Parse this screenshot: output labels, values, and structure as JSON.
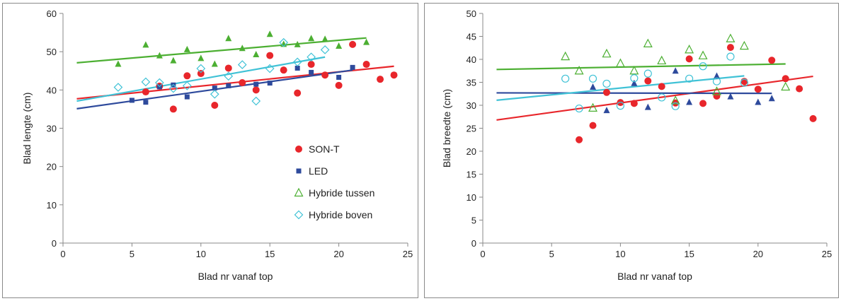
{
  "chart_data": [
    {
      "type": "scatter",
      "xlabel": "Blad nr vanaf top",
      "ylabel": "Blad lengte (cm)",
      "xlim": [
        0,
        25
      ],
      "ylim": [
        0,
        60
      ],
      "xticks": [
        0,
        5,
        10,
        15,
        20,
        25
      ],
      "yticks": [
        0,
        10,
        20,
        30,
        40,
        50,
        60
      ],
      "grid": false,
      "legend": "inside lower-right",
      "series": [
        {
          "name": "SON-T",
          "color": "#e8262b",
          "marker": "circle",
          "points": [
            [
              6,
              39.5
            ],
            [
              7,
              41
            ],
            [
              8,
              35
            ],
            [
              9,
              43.7
            ],
            [
              10,
              44.3
            ],
            [
              11,
              36
            ],
            [
              12,
              45.7
            ],
            [
              13,
              41.9
            ],
            [
              14,
              40
            ],
            [
              15,
              49
            ],
            [
              16,
              45.2
            ],
            [
              17,
              39.2
            ],
            [
              18,
              46.7
            ],
            [
              19,
              43.9
            ],
            [
              20,
              41.2
            ],
            [
              21,
              51.9
            ],
            [
              22,
              46.7
            ],
            [
              23,
              42.8
            ],
            [
              24,
              43.9
            ]
          ],
          "trend": [
            [
              1,
              37.7
            ],
            [
              24,
              46.2
            ]
          ]
        },
        {
          "name": "LED",
          "color": "#2e4a9c",
          "marker": "square",
          "points": [
            [
              5,
              37.3
            ],
            [
              6,
              36.8
            ],
            [
              7,
              40.8
            ],
            [
              8,
              41.3
            ],
            [
              9,
              38.2
            ],
            [
              11,
              40.5
            ],
            [
              12,
              41.1
            ],
            [
              14,
              41.5
            ],
            [
              15,
              41.8
            ],
            [
              17,
              45.7
            ],
            [
              18,
              44.6
            ],
            [
              20,
              43.3
            ],
            [
              21,
              45.9
            ]
          ],
          "trend": [
            [
              1,
              35.1
            ],
            [
              21,
              45.2
            ]
          ]
        },
        {
          "name": "Hybride tussen",
          "color": "#4caf32",
          "marker": "triangle",
          "points": [
            [
              4,
              46.8
            ],
            [
              6,
              51.8
            ],
            [
              7,
              49
            ],
            [
              8,
              47.7
            ],
            [
              9,
              50.6
            ],
            [
              10,
              48.3
            ],
            [
              11,
              46.8
            ],
            [
              12,
              53.5
            ],
            [
              13,
              50.9
            ],
            [
              14,
              49.3
            ],
            [
              15,
              54.6
            ],
            [
              16,
              52
            ],
            [
              17,
              51.9
            ],
            [
              18,
              53.5
            ],
            [
              19,
              53.3
            ],
            [
              20,
              51.5
            ],
            [
              22,
              52.5
            ]
          ],
          "trend": [
            [
              1,
              47.1
            ],
            [
              22,
              53.6
            ]
          ]
        },
        {
          "name": "Hybride boven",
          "color": "#40c2d6",
          "marker": "diamond",
          "points": [
            [
              4,
              40.7
            ],
            [
              6,
              42.1
            ],
            [
              7,
              41.9
            ],
            [
              8,
              40.4
            ],
            [
              9,
              41.1
            ],
            [
              10,
              45.6
            ],
            [
              11,
              38.9
            ],
            [
              12,
              43.6
            ],
            [
              13,
              46.6
            ],
            [
              14,
              37.1
            ],
            [
              15,
              45.6
            ],
            [
              16,
              52.4
            ],
            [
              17,
              47.3
            ],
            [
              18,
              48.6
            ],
            [
              19,
              50.5
            ]
          ],
          "trend": [
            [
              1,
              37.1
            ],
            [
              19,
              48.6
            ]
          ]
        }
      ],
      "legend_entries": [
        "SON-T",
        "LED",
        "Hybride tussen",
        "Hybride boven"
      ]
    },
    {
      "type": "scatter",
      "xlabel": "Blad nr vanaf top",
      "ylabel": "Blad breedte (cm)",
      "xlim": [
        0,
        25
      ],
      "ylim": [
        0,
        50
      ],
      "xticks": [
        0,
        5,
        10,
        15,
        20,
        25
      ],
      "yticks": [
        0,
        5,
        10,
        15,
        20,
        25,
        30,
        35,
        40,
        45,
        50
      ],
      "grid": false,
      "legend": "none",
      "series": [
        {
          "color": "#e8262b",
          "marker": "circle",
          "points": [
            [
              7,
              22.5
            ],
            [
              8,
              25.6
            ],
            [
              9,
              32.8
            ],
            [
              10,
              30.6
            ],
            [
              11,
              30.4
            ],
            [
              12,
              35.3
            ],
            [
              13,
              34.1
            ],
            [
              14,
              30.5
            ],
            [
              15,
              40.1
            ],
            [
              16,
              30.4
            ],
            [
              17,
              32
            ],
            [
              18,
              42.6
            ],
            [
              19,
              35.2
            ],
            [
              20,
              33.5
            ],
            [
              21,
              39.8
            ],
            [
              22,
              35.8
            ],
            [
              23,
              33.6
            ],
            [
              24,
              27.1
            ]
          ],
          "trend": [
            [
              1,
              26.8
            ],
            [
              24,
              36.3
            ]
          ]
        },
        {
          "color": "#2e4a9c",
          "marker": "triangle",
          "points": [
            [
              8,
              34
            ],
            [
              9,
              28.9
            ],
            [
              11,
              34.8
            ],
            [
              12,
              29.6
            ],
            [
              14,
              37.5
            ],
            [
              15,
              30.7
            ],
            [
              17,
              36.4
            ],
            [
              18,
              31.9
            ],
            [
              20,
              30.7
            ],
            [
              21,
              31.5
            ]
          ],
          "trend": [
            [
              1,
              32.7
            ],
            [
              21,
              32.6
            ]
          ]
        },
        {
          "color": "#4caf32",
          "marker": "triangle-open",
          "points": [
            [
              6,
              40.6
            ],
            [
              7,
              37.5
            ],
            [
              8,
              29.4
            ],
            [
              9,
              41.2
            ],
            [
              10,
              39.1
            ],
            [
              11,
              37.5
            ],
            [
              12,
              43.4
            ],
            [
              13,
              39.7
            ],
            [
              14,
              31
            ],
            [
              15,
              42.1
            ],
            [
              16,
              40.8
            ],
            [
              17,
              33
            ],
            [
              18,
              44.5
            ],
            [
              19,
              42.9
            ],
            [
              22,
              34
            ]
          ],
          "trend": [
            [
              1,
              37.8
            ],
            [
              22,
              39
            ]
          ]
        },
        {
          "color": "#40c2d6",
          "marker": "circle-open",
          "points": [
            [
              6,
              35.8
            ],
            [
              7,
              29.3
            ],
            [
              8,
              35.8
            ],
            [
              9,
              34.7
            ],
            [
              10,
              29.9
            ],
            [
              11,
              35.9
            ],
            [
              12,
              36.9
            ],
            [
              13,
              31.7
            ],
            [
              14,
              29.8
            ],
            [
              15,
              35.8
            ],
            [
              16,
              38.5
            ],
            [
              17,
              35.2
            ],
            [
              18,
              40.6
            ],
            [
              19,
              34.9
            ]
          ],
          "trend": [
            [
              1,
              31.1
            ],
            [
              19,
              36.4
            ]
          ]
        }
      ]
    }
  ]
}
